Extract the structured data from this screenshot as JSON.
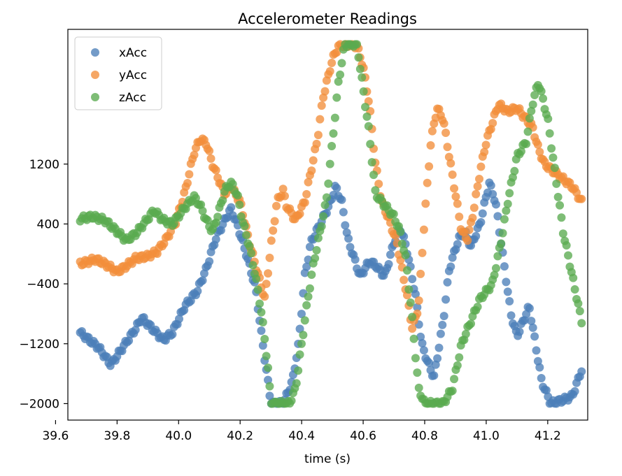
{
  "chart_data": {
    "type": "scatter",
    "title": "Accelerometer Readings",
    "xlabel": "time (s)",
    "ylabel": "",
    "xlim": [
      39.64,
      41.33
    ],
    "ylim": [
      -2220,
      3000
    ],
    "xticks": [
      39.6,
      39.8,
      40.0,
      40.2,
      40.4,
      40.6,
      40.8,
      41.0,
      41.2
    ],
    "xtick_labels": [
      "39.6",
      "39.8",
      "40.0",
      "40.2",
      "40.4",
      "40.6",
      "40.8",
      "41.0",
      "41.2"
    ],
    "yticks": [
      -2000,
      -1200,
      -400,
      400,
      1200
    ],
    "ytick_labels": [
      "−2000",
      "−1200",
      "−400",
      "400",
      "1200"
    ],
    "grid": false,
    "legend_position": "top-left",
    "x_range": [
      39.68,
      41.31
    ],
    "n_points": 300,
    "series": [
      {
        "name": "xAcc",
        "color": "#4c7fb8",
        "keypoints": [
          [
            39.68,
            -1050
          ],
          [
            39.74,
            -1250
          ],
          [
            39.78,
            -1480
          ],
          [
            39.81,
            -1300
          ],
          [
            39.86,
            -1000
          ],
          [
            39.88,
            -850
          ],
          [
            39.91,
            -980
          ],
          [
            39.95,
            -1150
          ],
          [
            39.98,
            -1050
          ],
          [
            40.02,
            -700
          ],
          [
            40.06,
            -500
          ],
          [
            40.09,
            -200
          ],
          [
            40.12,
            200
          ],
          [
            40.15,
            450
          ],
          [
            40.17,
            600
          ],
          [
            40.19,
            400
          ],
          [
            40.22,
            0
          ],
          [
            40.25,
            -450
          ],
          [
            40.27,
            -1100
          ],
          [
            40.29,
            -1700
          ],
          [
            40.3,
            -2000
          ],
          [
            40.34,
            -2000
          ],
          [
            40.37,
            -1700
          ],
          [
            40.39,
            -1200
          ],
          [
            40.41,
            -300
          ],
          [
            40.43,
            150
          ],
          [
            40.46,
            400
          ],
          [
            40.49,
            650
          ],
          [
            40.51,
            900
          ],
          [
            40.53,
            700
          ],
          [
            40.55,
            200
          ],
          [
            40.57,
            -50
          ],
          [
            40.59,
            -300
          ],
          [
            40.62,
            -100
          ],
          [
            40.64,
            -150
          ],
          [
            40.67,
            -300
          ],
          [
            40.7,
            150
          ],
          [
            40.72,
            350
          ],
          [
            40.74,
            100
          ],
          [
            40.77,
            -550
          ],
          [
            40.79,
            -1200
          ],
          [
            40.81,
            -1450
          ],
          [
            40.83,
            -1650
          ],
          [
            40.86,
            -900
          ],
          [
            40.88,
            -200
          ],
          [
            40.91,
            200
          ],
          [
            40.93,
            300
          ],
          [
            40.95,
            100
          ],
          [
            40.98,
            400
          ],
          [
            41.01,
            950
          ],
          [
            41.03,
            700
          ],
          [
            41.06,
            -200
          ],
          [
            41.08,
            -800
          ],
          [
            41.1,
            -1100
          ],
          [
            41.12,
            -900
          ],
          [
            41.14,
            -700
          ],
          [
            41.16,
            -1200
          ],
          [
            41.18,
            -1700
          ],
          [
            41.21,
            -2000
          ],
          [
            41.25,
            -1950
          ],
          [
            41.28,
            -1900
          ],
          [
            41.31,
            -1550
          ]
        ]
      },
      {
        "name": "yAcc",
        "color": "#f28e3b",
        "keypoints": [
          [
            39.68,
            -130
          ],
          [
            39.7,
            -110
          ],
          [
            39.73,
            -70
          ],
          [
            39.76,
            -130
          ],
          [
            39.8,
            -240
          ],
          [
            39.83,
            -160
          ],
          [
            39.86,
            -60
          ],
          [
            39.9,
            -30
          ],
          [
            39.93,
            30
          ],
          [
            39.96,
            200
          ],
          [
            39.99,
            420
          ],
          [
            40.02,
            820
          ],
          [
            40.05,
            1350
          ],
          [
            40.07,
            1540
          ],
          [
            40.09,
            1480
          ],
          [
            40.11,
            1200
          ],
          [
            40.13,
            1000
          ],
          [
            40.15,
            800
          ],
          [
            40.17,
            900
          ],
          [
            40.2,
            700
          ],
          [
            40.23,
            150
          ],
          [
            40.26,
            -300
          ],
          [
            40.28,
            -600
          ],
          [
            40.3,
            100
          ],
          [
            40.32,
            700
          ],
          [
            40.34,
            850
          ],
          [
            40.35,
            650
          ],
          [
            40.38,
            450
          ],
          [
            40.41,
            700
          ],
          [
            40.43,
            1100
          ],
          [
            40.45,
            1500
          ],
          [
            40.47,
            2100
          ],
          [
            40.5,
            2600
          ],
          [
            40.52,
            2780
          ],
          [
            40.55,
            2800
          ],
          [
            40.58,
            2780
          ],
          [
            40.6,
            2500
          ],
          [
            40.62,
            2000
          ],
          [
            40.64,
            1200
          ],
          [
            40.66,
            700
          ],
          [
            40.68,
            500
          ],
          [
            40.71,
            150
          ],
          [
            40.74,
            -500
          ],
          [
            40.76,
            -1000
          ],
          [
            40.78,
            -700
          ],
          [
            40.8,
            500
          ],
          [
            40.82,
            1500
          ],
          [
            40.84,
            1950
          ],
          [
            40.86,
            1800
          ],
          [
            40.88,
            1300
          ],
          [
            40.9,
            800
          ],
          [
            40.92,
            300
          ],
          [
            40.94,
            200
          ],
          [
            40.96,
            600
          ],
          [
            40.98,
            1100
          ],
          [
            41.0,
            1500
          ],
          [
            41.02,
            1750
          ],
          [
            41.04,
            2000
          ],
          [
            41.07,
            1900
          ],
          [
            41.1,
            1950
          ],
          [
            41.13,
            1800
          ],
          [
            41.15,
            1700
          ],
          [
            41.17,
            1400
          ],
          [
            41.19,
            1200
          ],
          [
            41.22,
            1100
          ],
          [
            41.25,
            1000
          ],
          [
            41.28,
            900
          ],
          [
            41.31,
            700
          ]
        ]
      },
      {
        "name": "zAcc",
        "color": "#5aaa4f",
        "keypoints": [
          [
            39.68,
            470
          ],
          [
            39.72,
            500
          ],
          [
            39.76,
            450
          ],
          [
            39.8,
            300
          ],
          [
            39.83,
            180
          ],
          [
            39.86,
            270
          ],
          [
            39.89,
            420
          ],
          [
            39.92,
            580
          ],
          [
            39.95,
            450
          ],
          [
            39.98,
            400
          ],
          [
            40.02,
            620
          ],
          [
            40.05,
            760
          ],
          [
            40.07,
            650
          ],
          [
            40.09,
            450
          ],
          [
            40.11,
            300
          ],
          [
            40.13,
            550
          ],
          [
            40.15,
            850
          ],
          [
            40.17,
            950
          ],
          [
            40.19,
            800
          ],
          [
            40.21,
            400
          ],
          [
            40.23,
            100
          ],
          [
            40.25,
            -300
          ],
          [
            40.27,
            -800
          ],
          [
            40.29,
            -1500
          ],
          [
            40.3,
            -2000
          ],
          [
            40.36,
            -2000
          ],
          [
            40.38,
            -1800
          ],
          [
            40.4,
            -1200
          ],
          [
            40.42,
            -600
          ],
          [
            40.44,
            -100
          ],
          [
            40.46,
            300
          ],
          [
            40.48,
            700
          ],
          [
            40.5,
            1500
          ],
          [
            40.52,
            2300
          ],
          [
            40.54,
            2800
          ],
          [
            40.58,
            2800
          ],
          [
            40.6,
            2200
          ],
          [
            40.62,
            1600
          ],
          [
            40.64,
            800
          ],
          [
            40.67,
            650
          ],
          [
            40.7,
            500
          ],
          [
            40.72,
            300
          ],
          [
            40.74,
            -100
          ],
          [
            40.76,
            -900
          ],
          [
            40.78,
            -1800
          ],
          [
            40.8,
            -2000
          ],
          [
            40.86,
            -2000
          ],
          [
            40.89,
            -1800
          ],
          [
            40.92,
            -1200
          ],
          [
            40.95,
            -900
          ],
          [
            40.98,
            -600
          ],
          [
            41.0,
            -500
          ],
          [
            41.02,
            -400
          ],
          [
            41.05,
            200
          ],
          [
            41.07,
            700
          ],
          [
            41.1,
            1300
          ],
          [
            41.13,
            1500
          ],
          [
            41.15,
            2000
          ],
          [
            41.17,
            2300
          ],
          [
            41.2,
            1800
          ],
          [
            41.23,
            900
          ],
          [
            41.25,
            300
          ],
          [
            41.28,
            -300
          ],
          [
            41.31,
            -900
          ]
        ]
      }
    ]
  }
}
